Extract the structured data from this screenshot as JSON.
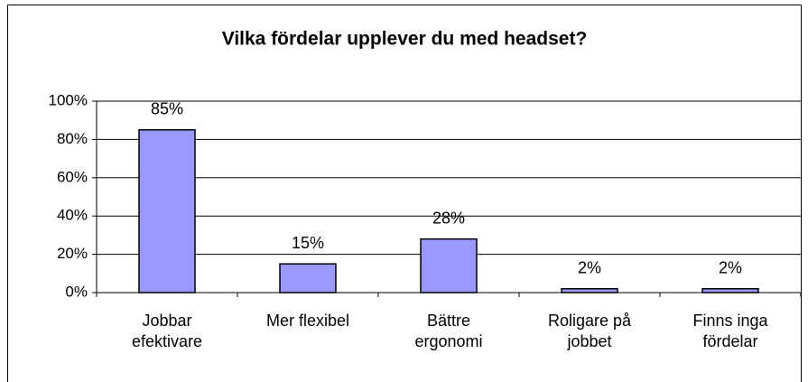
{
  "chart_data": {
    "type": "bar",
    "title": "Vilka fördelar upplever du med headset?",
    "categories": [
      "Jobbar efektivare",
      "Mer flexibel",
      "Bättre ergonomi",
      "Roligare på jobbet",
      "Finns inga fördelar"
    ],
    "values": [
      85,
      15,
      28,
      2,
      2
    ],
    "value_labels": [
      "85%",
      "15%",
      "28%",
      "2%",
      "2%"
    ],
    "color": "#9999ff",
    "ylim": [
      0,
      100
    ],
    "yticks": [
      {
        "value": 0,
        "label": "0%"
      },
      {
        "value": 20,
        "label": "20%"
      },
      {
        "value": 40,
        "label": "40%"
      },
      {
        "value": 60,
        "label": "60%"
      },
      {
        "value": 80,
        "label": "80%"
      },
      {
        "value": 100,
        "label": "100%"
      }
    ],
    "grid": true
  }
}
